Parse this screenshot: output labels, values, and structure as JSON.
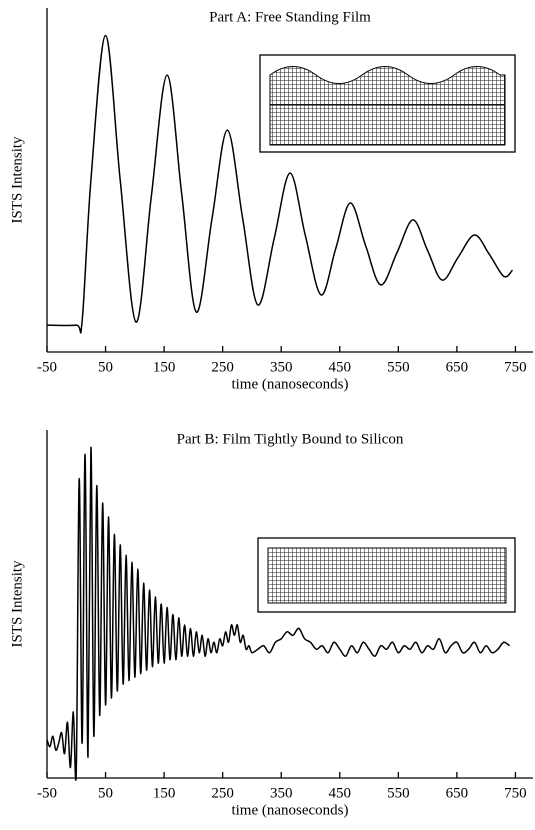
{
  "chart_data": [
    {
      "type": "line",
      "title": "Part A: Free Standing Film",
      "xlabel": "time (nanoseconds)",
      "ylabel": "ISTS Intensity",
      "x": [
        -50,
        0,
        10,
        25,
        50,
        75,
        102,
        128,
        155,
        180,
        205,
        232,
        258,
        284,
        310,
        338,
        365,
        391,
        418,
        443,
        468,
        494,
        520,
        548,
        575,
        600,
        625,
        652,
        680,
        705,
        730,
        745
      ],
      "series": [
        {
          "color": "#000000",
          "values": [
            0.78,
            0.78,
            0.9,
            5.0,
            9.2,
            5.0,
            0.87,
            4.5,
            8.05,
            4.6,
            1.16,
            3.9,
            6.45,
            3.9,
            1.37,
            3.3,
            5.2,
            3.4,
            1.66,
            3.0,
            4.33,
            3.1,
            1.95,
            2.9,
            3.84,
            2.95,
            2.09,
            2.75,
            3.4,
            2.85,
            2.2,
            2.38
          ]
        }
      ],
      "xlim": [
        -50,
        780
      ],
      "xticks": [
        -50,
        50,
        150,
        250,
        350,
        450,
        550,
        650,
        750
      ],
      "ylim": [
        0,
        10
      ]
    },
    {
      "type": "line",
      "title": "Part B: Film Tightly Bound to Silicon",
      "xlabel": "time (nanoseconds)",
      "ylabel": "ISTS Intensity",
      "x": [
        -50,
        -45,
        -40,
        -35,
        -30,
        -25,
        -20,
        -15,
        -10,
        -5,
        0,
        5,
        10,
        15,
        20,
        25,
        30,
        35,
        40,
        45,
        50,
        55,
        60,
        65,
        70,
        75,
        80,
        85,
        90,
        95,
        100,
        105,
        110,
        115,
        120,
        125,
        130,
        135,
        140,
        145,
        150,
        155,
        160,
        165,
        170,
        175,
        180,
        185,
        190,
        195,
        200,
        205,
        210,
        215,
        220,
        225,
        230,
        235,
        240,
        245,
        250,
        255,
        260,
        265,
        270,
        275,
        280,
        285,
        290,
        295,
        300,
        310,
        320,
        330,
        340,
        350,
        360,
        370,
        380,
        390,
        400,
        410,
        420,
        430,
        440,
        450,
        460,
        470,
        480,
        490,
        500,
        510,
        520,
        530,
        540,
        550,
        560,
        570,
        580,
        590,
        600,
        610,
        620,
        630,
        640,
        650,
        660,
        670,
        680,
        690,
        700,
        710,
        720,
        730,
        740
      ],
      "series": [
        {
          "color": "#000000",
          "values": [
            1.1,
            0.9,
            1.2,
            0.8,
            1.0,
            1.3,
            0.7,
            1.6,
            0.3,
            1.9,
            0.2,
            8.6,
            1.0,
            9.3,
            0.6,
            9.5,
            1.2,
            8.4,
            1.8,
            7.9,
            2.1,
            7.5,
            2.3,
            7.0,
            2.5,
            6.7,
            2.7,
            6.4,
            2.8,
            6.2,
            2.9,
            6.0,
            3.0,
            5.6,
            3.1,
            5.4,
            3.2,
            5.2,
            3.3,
            5.0,
            3.3,
            4.9,
            3.4,
            4.7,
            3.4,
            4.6,
            3.5,
            4.4,
            3.5,
            4.3,
            3.5,
            4.2,
            3.6,
            4.1,
            3.5,
            4.0,
            3.6,
            3.9,
            3.6,
            4.0,
            3.8,
            4.2,
            3.9,
            4.4,
            4.1,
            4.4,
            3.9,
            4.1,
            3.7,
            3.8,
            3.6,
            3.7,
            3.8,
            3.6,
            3.9,
            4.0,
            4.2,
            4.1,
            4.3,
            4.0,
            3.9,
            3.7,
            3.8,
            3.6,
            3.9,
            3.7,
            3.5,
            3.8,
            3.6,
            3.9,
            3.7,
            3.5,
            3.8,
            3.7,
            3.9,
            3.6,
            3.8,
            3.7,
            3.9,
            3.6,
            3.8,
            3.7,
            4.0,
            3.6,
            3.8,
            3.9,
            3.6,
            3.7,
            3.9,
            3.6,
            3.8,
            3.6,
            3.7,
            3.9,
            3.8
          ]
        }
      ],
      "xlim": [
        -50,
        780
      ],
      "xticks": [
        -50,
        50,
        150,
        250,
        350,
        450,
        550,
        650,
        750
      ],
      "ylim": [
        0,
        10
      ]
    }
  ]
}
